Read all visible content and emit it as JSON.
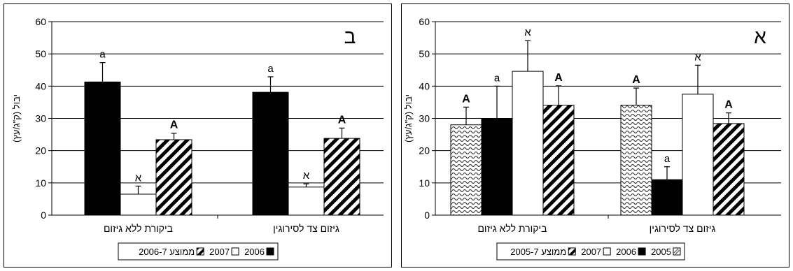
{
  "chart_data": [
    {
      "type": "bar",
      "panel_letter": "ב",
      "ylabel": "יבול (ק\"ג/עץ)",
      "ylim": [
        0,
        60
      ],
      "yticks": [
        0,
        10,
        20,
        30,
        40,
        50,
        60
      ],
      "categories": [
        "ביקורת ללא גיזום",
        "גיזום צד לסירוגין"
      ],
      "series": [
        {
          "name": "2006",
          "fill": "solid",
          "values": [
            41.3,
            38.1
          ],
          "errors": [
            6.0,
            4.8
          ],
          "labels": [
            "a",
            "a"
          ]
        },
        {
          "name": "2007",
          "fill": "white",
          "values": [
            6.5,
            8.7
          ],
          "errors": [
            2.5,
            1.0
          ],
          "labels": [
            "א",
            "א"
          ]
        },
        {
          "name": "ממוצע 2006-7",
          "fill": "diagonal",
          "values": [
            23.4,
            23.8
          ],
          "errors": [
            2.0,
            3.2
          ],
          "labels": [
            "A",
            "A"
          ]
        }
      ],
      "legend": "bottom",
      "grid": "horizontal"
    },
    {
      "type": "bar",
      "panel_letter": "א",
      "ylabel": "יבול (ק\"ג/עץ)",
      "ylim": [
        0,
        60
      ],
      "yticks": [
        0,
        10,
        20,
        30,
        40,
        50,
        60
      ],
      "categories": [
        "ביקורת ללא גיזום",
        "גיזום צד לסירוגין"
      ],
      "series": [
        {
          "name": "2005",
          "fill": "wave",
          "values": [
            28.0,
            34.1
          ],
          "errors": [
            5.5,
            5.3
          ],
          "labels": [
            "A",
            "A"
          ]
        },
        {
          "name": "2006",
          "fill": "solid",
          "values": [
            30.0,
            11.0
          ],
          "errors": [
            10.0,
            4.0
          ],
          "labels": [
            "a",
            "a"
          ]
        },
        {
          "name": "2007",
          "fill": "white",
          "values": [
            44.6,
            37.5
          ],
          "errors": [
            9.5,
            9.0
          ],
          "labels": [
            "א",
            "א"
          ]
        },
        {
          "name": "ממוצע 2005-7",
          "fill": "diagonal",
          "values": [
            34.1,
            28.4
          ],
          "errors": [
            6.0,
            3.3
          ],
          "labels": [
            "A",
            "A"
          ]
        }
      ],
      "legend": "bottom",
      "grid": "horizontal"
    }
  ]
}
